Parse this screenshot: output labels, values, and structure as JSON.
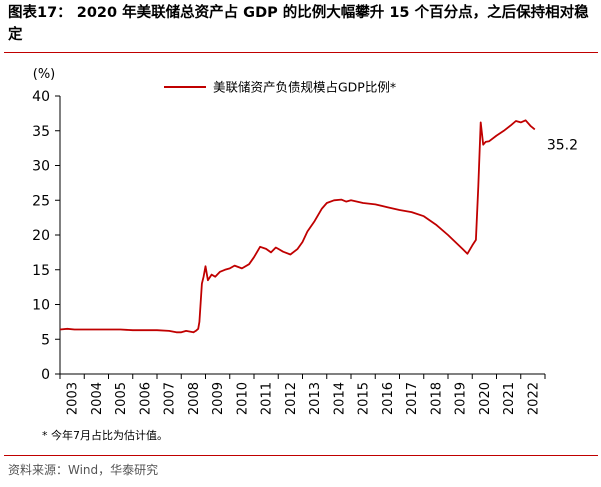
{
  "header": {
    "title": "图表17： 2020 年美联储总资产占 GDP 的比例大幅攀升 15 个百分点，之后保持相对稳定"
  },
  "footer": {
    "note": "* 今年7月占比为估计值。",
    "source": "资料来源：Wind，华泰研究"
  },
  "colors": {
    "series": "#c00000",
    "rule": "#c00000",
    "axis": "#000000"
  },
  "chart_data": {
    "type": "line",
    "title": "",
    "xlabel": "",
    "ylabel": "(%)",
    "ylim": [
      0,
      40
    ],
    "yticks": [
      0,
      5,
      10,
      15,
      20,
      25,
      30,
      35,
      40
    ],
    "xlim": [
      2003,
      2023
    ],
    "xticks": [
      "2003",
      "2004",
      "2005",
      "2006",
      "2007",
      "2008",
      "2009",
      "2010",
      "2011",
      "2012",
      "2013",
      "2014",
      "2015",
      "2016",
      "2017",
      "2018",
      "2019",
      "2020",
      "2021",
      "2022"
    ],
    "grid": false,
    "legend": "top-center",
    "annotation": {
      "text": "35.2",
      "x": 2022.58,
      "y": 35.2
    },
    "series": [
      {
        "name": "美联储资产负债规模占GDP比例*",
        "x": [
          2003.0,
          2003.3,
          2003.6,
          2004.0,
          2004.5,
          2005.0,
          2005.5,
          2006.0,
          2006.5,
          2007.0,
          2007.5,
          2007.8,
          2008.0,
          2008.2,
          2008.5,
          2008.6,
          2008.7,
          2008.75,
          2008.85,
          2008.92,
          2009.0,
          2009.1,
          2009.25,
          2009.4,
          2009.6,
          2009.8,
          2010.0,
          2010.2,
          2010.5,
          2010.8,
          2011.0,
          2011.25,
          2011.5,
          2011.7,
          2011.9,
          2012.0,
          2012.2,
          2012.5,
          2012.8,
          2013.0,
          2013.2,
          2013.5,
          2013.8,
          2014.0,
          2014.3,
          2014.6,
          2014.8,
          2015.0,
          2015.5,
          2016.0,
          2016.5,
          2017.0,
          2017.5,
          2018.0,
          2018.5,
          2019.0,
          2019.3,
          2019.6,
          2019.8,
          2020.0,
          2020.15,
          2020.25,
          2020.35,
          2020.45,
          2020.55,
          2020.7,
          2021.0,
          2021.3,
          2021.6,
          2021.8,
          2022.0,
          2022.2,
          2022.4,
          2022.58
        ],
        "values": [
          6.4,
          6.5,
          6.4,
          6.4,
          6.4,
          6.4,
          6.4,
          6.3,
          6.3,
          6.3,
          6.2,
          6.0,
          6.0,
          6.2,
          6.0,
          6.2,
          6.5,
          7.5,
          13.0,
          14.0,
          15.5,
          13.5,
          14.3,
          14.0,
          14.7,
          15.0,
          15.2,
          15.6,
          15.2,
          15.8,
          16.8,
          18.3,
          18.0,
          17.5,
          18.2,
          18.0,
          17.6,
          17.2,
          18.0,
          19.0,
          20.5,
          22.0,
          23.8,
          24.6,
          25.0,
          25.1,
          24.8,
          25.0,
          24.6,
          24.4,
          24.0,
          23.6,
          23.3,
          22.7,
          21.5,
          20.0,
          19.0,
          18.0,
          17.3,
          18.5,
          19.3,
          27.0,
          36.2,
          33.0,
          33.4,
          33.5,
          34.3,
          35.0,
          35.8,
          36.4,
          36.2,
          36.5,
          35.7,
          35.2
        ]
      }
    ]
  }
}
